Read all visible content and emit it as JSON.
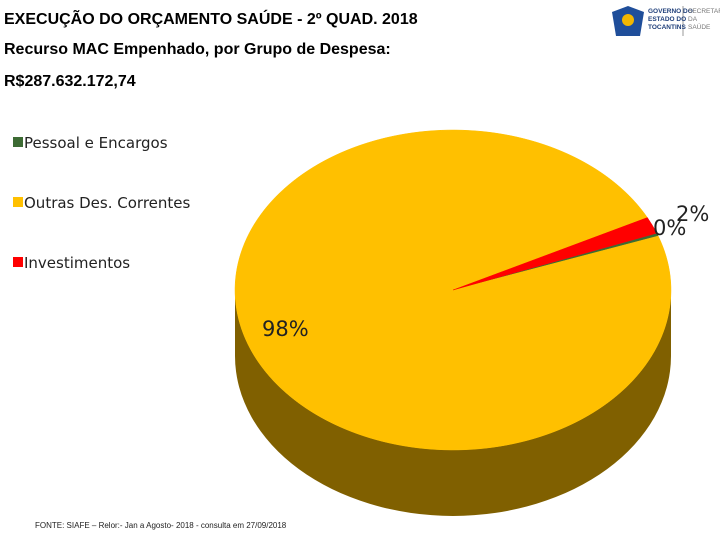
{
  "header": {
    "title": "EXECUÇÃO DO ORÇAMENTO SAÚDE - 2º QUAD. 2018",
    "subtitle": "Recurso MAC Empenhado, por Grupo de Despesa:",
    "total": "R$287.632.172,74"
  },
  "logo": {
    "government": [
      "GOVERNO DO",
      "ESTADO DO",
      "TOCANTINS"
    ],
    "secretariat": [
      "SECRETARIA",
      "DA",
      "SAÚDE"
    ]
  },
  "chart_data": {
    "type": "pie",
    "categories": [
      "Pessoal e Encargos",
      "Outras Des. Correntes",
      "Investimentos"
    ],
    "values": [
      0.3,
      98,
      1.7
    ],
    "value_labels": [
      "0%",
      "98%",
      "2%"
    ],
    "colors": [
      "#3d6b34",
      "#ffc000",
      "#ff0000"
    ],
    "legend": "left"
  },
  "source": "FONTE: SIAFE – Relor:- Jan a Agosto- 2018 - consulta em 27/09/2018"
}
